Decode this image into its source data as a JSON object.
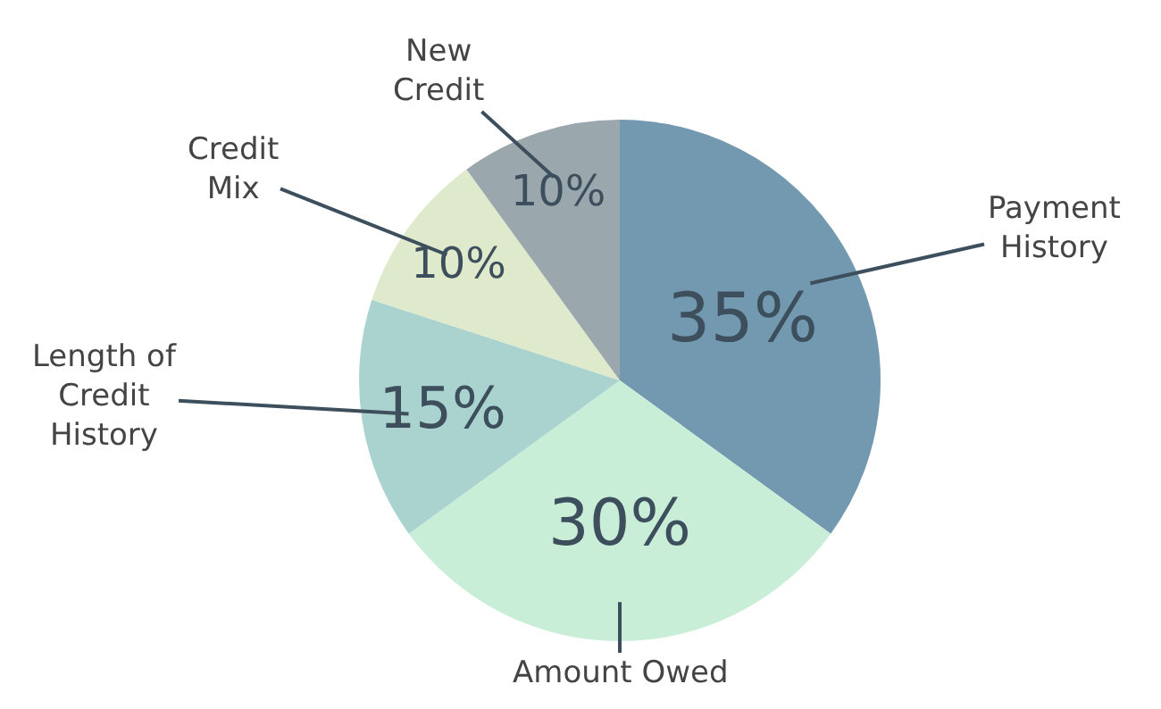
{
  "chart_data": {
    "type": "pie",
    "categories": [
      "Payment History",
      "Amount Owed",
      "Length of Credit History",
      "Credit Mix",
      "New Credit"
    ],
    "values": [
      35,
      30,
      15,
      10,
      10
    ],
    "value_labels": [
      "35%",
      "30%",
      "15%",
      "10%",
      "10%"
    ],
    "colors": [
      "#7399b0",
      "#c8eed8",
      "#aad3cf",
      "#dfe9cb",
      "#9aa7ad"
    ],
    "legend": false
  }
}
